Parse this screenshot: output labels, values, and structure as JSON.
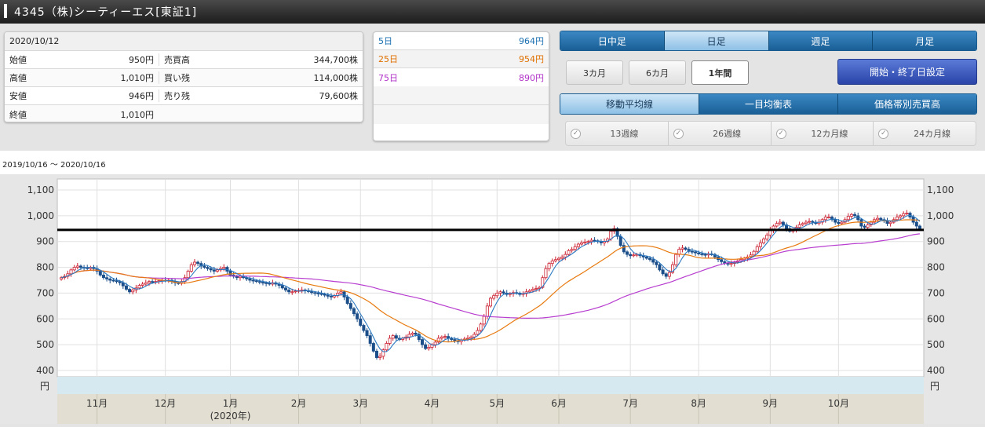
{
  "header": {
    "title": "4345（株)シーティーエス[東証1]"
  },
  "quote": {
    "date": "2020/10/12",
    "rows": [
      {
        "label": "始値",
        "value": "950円",
        "label2": "売買高",
        "value2": "344,700株"
      },
      {
        "label": "高値",
        "value": "1,010円",
        "label2": "買い残",
        "value2": "114,000株"
      },
      {
        "label": "安値",
        "value": "946円",
        "label2": "売り残",
        "value2": "79,600株"
      },
      {
        "label": "終値",
        "value": "1,010円",
        "label2": "",
        "value2": ""
      }
    ]
  },
  "ma_panel": [
    {
      "label": "5日",
      "value": "964円",
      "color": "#1a6fb0"
    },
    {
      "label": "25日",
      "value": "954円",
      "color": "#e07000"
    },
    {
      "label": "75日",
      "value": "890円",
      "color": "#b030c8"
    }
  ],
  "period_tabs": [
    {
      "label": "日中足",
      "active": false
    },
    {
      "label": "日足",
      "active": true
    },
    {
      "label": "週足",
      "active": false
    },
    {
      "label": "月足",
      "active": false
    }
  ],
  "range_buttons": [
    {
      "label": "3カ月",
      "active": false
    },
    {
      "label": "6カ月",
      "active": false
    },
    {
      "label": "1年間",
      "active": true
    }
  ],
  "date_setting_label": "開始・終了日設定",
  "indicator_tabs": [
    {
      "label": "移動平均線",
      "active": true
    },
    {
      "label": "一目均衡表",
      "active": false
    },
    {
      "label": "価格帯別売買高",
      "active": false
    }
  ],
  "checks": [
    "13週線",
    "26週線",
    "12カ月線",
    "24カ月線"
  ],
  "date_range": "2019/10/16 ～ 2020/10/16",
  "chart_data": {
    "type": "candlestick",
    "ylim": [
      400,
      1100
    ],
    "yticks": [
      "1,100",
      "1,000",
      "900",
      "800",
      "700",
      "600",
      "500",
      "400"
    ],
    "ytick_values": [
      1100,
      1000,
      900,
      800,
      700,
      600,
      500,
      400
    ],
    "yunit": "円",
    "months": [
      "11月",
      "12月",
      "1月",
      "2月",
      "3月",
      "4月",
      "5月",
      "6月",
      "7月",
      "8月",
      "9月",
      "10月"
    ],
    "month_starts": [
      11,
      32,
      52,
      73,
      92,
      114,
      134,
      153,
      175,
      196,
      218,
      239
    ],
    "year_label": "(2020年)",
    "horizontal_line": 945,
    "colors": {
      "up": "#cc2233",
      "down": "#1c4f8a",
      "ma5": "#2a78c0",
      "ma25": "#e87a10",
      "ma75": "#b83ed0",
      "hline": "#000000"
    },
    "close": [
      760,
      765,
      775,
      790,
      800,
      805,
      800,
      798,
      795,
      800,
      795,
      785,
      770,
      760,
      755,
      750,
      748,
      745,
      740,
      728,
      715,
      705,
      712,
      720,
      730,
      735,
      740,
      745,
      742,
      745,
      748,
      750,
      748,
      750,
      745,
      740,
      738,
      745,
      760,
      785,
      810,
      820,
      815,
      805,
      800,
      795,
      790,
      785,
      790,
      795,
      800,
      785,
      770,
      765,
      760,
      765,
      760,
      755,
      750,
      748,
      745,
      742,
      740,
      738,
      735,
      740,
      735,
      730,
      720,
      712,
      705,
      705,
      708,
      710,
      712,
      710,
      706,
      702,
      700,
      698,
      696,
      692,
      688,
      685,
      690,
      700,
      705,
      685,
      660,
      640,
      620,
      600,
      575,
      555,
      535,
      505,
      475,
      450,
      455,
      480,
      505,
      525,
      535,
      525,
      520,
      525,
      530,
      540,
      545,
      540,
      520,
      500,
      485,
      490,
      500,
      510,
      525,
      530,
      532,
      525,
      520,
      515,
      512,
      518,
      522,
      525,
      530,
      540,
      555,
      580,
      610,
      650,
      680,
      690,
      700,
      705,
      700,
      695,
      698,
      702,
      700,
      695,
      698,
      705,
      710,
      715,
      718,
      722,
      760,
      795,
      815,
      825,
      830,
      835,
      840,
      850,
      865,
      870,
      880,
      890,
      895,
      898,
      900,
      905,
      903,
      900,
      895,
      900,
      910,
      940,
      950,
      920,
      885,
      860,
      850,
      845,
      848,
      850,
      845,
      840,
      835,
      830,
      820,
      810,
      790,
      775,
      765,
      780,
      810,
      850,
      870,
      875,
      870,
      862,
      860,
      856,
      852,
      850,
      848,
      852,
      850,
      840,
      830,
      822,
      815,
      812,
      815,
      820,
      825,
      830,
      835,
      840,
      848,
      862,
      880,
      895,
      910,
      925,
      945,
      960,
      970,
      975,
      965,
      950,
      940,
      945,
      955,
      965,
      970,
      975,
      978,
      975,
      970,
      975,
      985,
      995,
      995,
      985,
      975,
      970,
      975,
      985,
      998,
      1005,
      1000,
      985,
      960,
      955,
      965,
      975,
      985,
      990,
      985,
      980,
      970,
      975,
      985,
      995,
      1000,
      1008,
      1010,
      995,
      975,
      960,
      950
    ]
  }
}
